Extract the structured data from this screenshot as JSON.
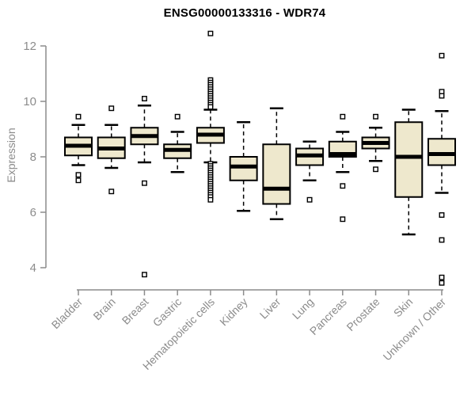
{
  "chart": {
    "title": "ENSG00000133316 - WDR74",
    "y_label": "Expression"
  },
  "chart_data": {
    "type": "boxplot",
    "title": "ENSG00000133316 - WDR74",
    "xlabel": "",
    "ylabel": "Expression",
    "ylim": [
      3.2,
      12.6
    ],
    "yticks": [
      4,
      6,
      8,
      10,
      12
    ],
    "grid": false,
    "legend": "none",
    "categories": [
      "Bladder",
      "Brain",
      "Breast",
      "Gastric",
      "Hematopoietic cells",
      "Kidney",
      "Liver",
      "Lung",
      "Pancreas",
      "Prostate",
      "Skin",
      "Unknown / Other"
    ],
    "boxes": [
      {
        "category": "Bladder",
        "whisker_low": 7.7,
        "q1": 8.05,
        "median": 8.4,
        "q3": 8.7,
        "whisker_high": 9.15,
        "outliers": [
          9.45,
          7.35,
          7.15
        ]
      },
      {
        "category": "Brain",
        "whisker_low": 7.6,
        "q1": 7.95,
        "median": 8.3,
        "q3": 8.7,
        "whisker_high": 9.15,
        "outliers": [
          9.75,
          6.75
        ]
      },
      {
        "category": "Breast",
        "whisker_low": 7.8,
        "q1": 8.45,
        "median": 8.75,
        "q3": 9.05,
        "whisker_high": 9.85,
        "outliers": [
          10.1,
          7.05,
          3.75
        ]
      },
      {
        "category": "Gastric",
        "whisker_low": 7.45,
        "q1": 7.95,
        "median": 8.25,
        "q3": 8.45,
        "whisker_high": 8.9,
        "outliers": [
          9.45
        ]
      },
      {
        "category": "Hematopoietic cells",
        "whisker_low": 7.8,
        "q1": 8.5,
        "median": 8.8,
        "q3": 9.05,
        "whisker_high": 9.7,
        "outliers": [
          12.45,
          10.77,
          10.68,
          10.6,
          10.52,
          10.44,
          10.36,
          10.28,
          10.2,
          10.12,
          10.04,
          9.96,
          9.88,
          9.8,
          7.75,
          7.67,
          7.59,
          7.51,
          7.43,
          7.35,
          7.27,
          7.19,
          7.11,
          7.03,
          6.95,
          6.87,
          6.79,
          6.71,
          6.63,
          6.55,
          6.45
        ]
      },
      {
        "category": "Kidney",
        "whisker_low": 6.05,
        "q1": 7.15,
        "median": 7.65,
        "q3": 8.0,
        "whisker_high": 9.25,
        "outliers": []
      },
      {
        "category": "Liver",
        "whisker_low": 5.75,
        "q1": 6.3,
        "median": 6.85,
        "q3": 8.45,
        "whisker_high": 9.75,
        "outliers": []
      },
      {
        "category": "Lung",
        "whisker_low": 7.15,
        "q1": 7.7,
        "median": 8.05,
        "q3": 8.3,
        "whisker_high": 8.55,
        "outliers": [
          6.45
        ]
      },
      {
        "category": "Pancreas",
        "whisker_low": 7.45,
        "q1": 8.0,
        "median": 8.1,
        "q3": 8.55,
        "whisker_high": 8.9,
        "outliers": [
          9.45,
          6.95,
          5.75
        ]
      },
      {
        "category": "Prostate",
        "whisker_low": 7.85,
        "q1": 8.3,
        "median": 8.5,
        "q3": 8.7,
        "whisker_high": 9.05,
        "outliers": [
          9.45,
          7.55
        ]
      },
      {
        "category": "Skin",
        "whisker_low": 5.2,
        "q1": 6.55,
        "median": 8.0,
        "q3": 9.25,
        "whisker_high": 9.7,
        "outliers": []
      },
      {
        "category": "Unknown / Other",
        "whisker_low": 6.7,
        "q1": 7.7,
        "median": 8.1,
        "q3": 8.65,
        "whisker_high": 9.65,
        "outliers": [
          11.65,
          10.35,
          10.2,
          5.9,
          5.0,
          3.65,
          3.45
        ]
      }
    ],
    "style": {
      "box_fill": "#EEE8CD",
      "box_border": "#000000",
      "median_color": "#000000",
      "whisker_color": "#000000",
      "outlier_color": "#000000",
      "axis_color": "#8C8C8C",
      "tick_label_color": "#8C8C8C",
      "title_color": "#000000",
      "background": "#FFFFFF"
    }
  }
}
